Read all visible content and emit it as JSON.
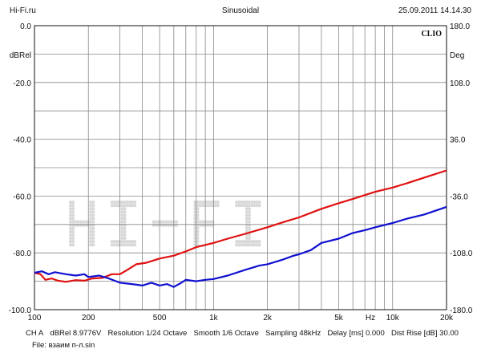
{
  "header": {
    "left": "Hi-Fi.ru",
    "center": "Sinusoidal",
    "right": "25.09.2011 14.14.30"
  },
  "footer": {
    "items": [
      "CH A",
      "dBRel 8.9776V",
      "Resolution 1/24 Octave",
      "Smooth 1/6 Octave",
      "Sampling 48kHz",
      "Delay [ms] 0.000",
      "Dist Rise [dB] 30.00"
    ],
    "file": "File: взаим п-л.sin"
  },
  "colors": {
    "red_series": "#e01010",
    "blue_series": "#1010d0",
    "grid": "#888888",
    "watermark": "#d9d9d9"
  },
  "chart_data": {
    "type": "line",
    "brand": "CLIO",
    "watermark": "HI-FI",
    "x_scale": "log",
    "xlim": [
      100,
      20000
    ],
    "ylim": [
      -100,
      0
    ],
    "y2lim": [
      -180,
      180
    ],
    "grid": true,
    "xlabel": "Hz",
    "ylabel": "dBRel",
    "y2label": "Deg",
    "x_ticks": [
      {
        "value": 100,
        "label": "100"
      },
      {
        "value": 200,
        "label": "200"
      },
      {
        "value": 500,
        "label": "500"
      },
      {
        "value": 1000,
        "label": "1k"
      },
      {
        "value": 2000,
        "label": "2k"
      },
      {
        "value": 5000,
        "label": "5k"
      },
      {
        "value": 10000,
        "label": "10k"
      },
      {
        "value": 20000,
        "label": "20k"
      }
    ],
    "y_ticks": [
      {
        "value": 0,
        "label": "0.0"
      },
      {
        "value": -20,
        "label": "-20.0"
      },
      {
        "value": -40,
        "label": "-40.0"
      },
      {
        "value": -60,
        "label": "-60.0"
      },
      {
        "value": -80,
        "label": "-80.0"
      },
      {
        "value": -100,
        "label": "-100.0"
      }
    ],
    "y2_ticks": [
      {
        "value": 180,
        "label": "180.0"
      },
      {
        "value": 108,
        "label": "108.0"
      },
      {
        "value": 36,
        "label": "36.0"
      },
      {
        "value": -36,
        "label": "-36.0"
      },
      {
        "value": -108,
        "label": "-108.0"
      },
      {
        "value": -180,
        "label": "-180.0"
      }
    ],
    "series": [
      {
        "color": "#e01010",
        "points": [
          [
            100,
            -87.0
          ],
          [
            108,
            -87.5
          ],
          [
            115,
            -89.5
          ],
          [
            125,
            -89.0
          ],
          [
            135,
            -89.8
          ],
          [
            150,
            -90.2
          ],
          [
            170,
            -89.6
          ],
          [
            190,
            -89.8
          ],
          [
            210,
            -89.0
          ],
          [
            240,
            -88.8
          ],
          [
            270,
            -87.5
          ],
          [
            300,
            -87.5
          ],
          [
            330,
            -86.0
          ],
          [
            370,
            -84.0
          ],
          [
            420,
            -83.5
          ],
          [
            500,
            -82.0
          ],
          [
            600,
            -81.0
          ],
          [
            700,
            -79.5
          ],
          [
            800,
            -78.0
          ],
          [
            1000,
            -76.5
          ],
          [
            1200,
            -75.0
          ],
          [
            1500,
            -73.3
          ],
          [
            2000,
            -71.0
          ],
          [
            2500,
            -69.0
          ],
          [
            3000,
            -67.5
          ],
          [
            4000,
            -64.5
          ],
          [
            5000,
            -62.5
          ],
          [
            6000,
            -61.0
          ],
          [
            8000,
            -58.5
          ],
          [
            10000,
            -57.0
          ],
          [
            12000,
            -55.5
          ],
          [
            15000,
            -53.5
          ],
          [
            20000,
            -51.0
          ]
        ]
      },
      {
        "color": "#1010d0",
        "points": [
          [
            100,
            -87.0
          ],
          [
            110,
            -86.5
          ],
          [
            120,
            -87.5
          ],
          [
            130,
            -86.8
          ],
          [
            150,
            -87.5
          ],
          [
            170,
            -88.0
          ],
          [
            190,
            -87.5
          ],
          [
            200,
            -88.5
          ],
          [
            230,
            -88.0
          ],
          [
            260,
            -89.0
          ],
          [
            300,
            -90.5
          ],
          [
            350,
            -91.0
          ],
          [
            400,
            -91.5
          ],
          [
            450,
            -90.5
          ],
          [
            500,
            -91.5
          ],
          [
            550,
            -91.0
          ],
          [
            600,
            -92.0
          ],
          [
            650,
            -90.8
          ],
          [
            700,
            -89.5
          ],
          [
            800,
            -90.0
          ],
          [
            900,
            -89.5
          ],
          [
            1000,
            -89.2
          ],
          [
            1200,
            -88.0
          ],
          [
            1500,
            -86.0
          ],
          [
            1800,
            -84.5
          ],
          [
            2000,
            -84.0
          ],
          [
            2400,
            -82.5
          ],
          [
            2800,
            -81.0
          ],
          [
            3000,
            -80.5
          ],
          [
            3500,
            -79.0
          ],
          [
            4000,
            -76.5
          ],
          [
            5000,
            -75.0
          ],
          [
            6000,
            -73.0
          ],
          [
            7000,
            -72.0
          ],
          [
            8000,
            -71.0
          ],
          [
            10000,
            -69.5
          ],
          [
            12000,
            -68.0
          ],
          [
            15000,
            -66.5
          ],
          [
            20000,
            -63.8
          ]
        ]
      }
    ]
  }
}
